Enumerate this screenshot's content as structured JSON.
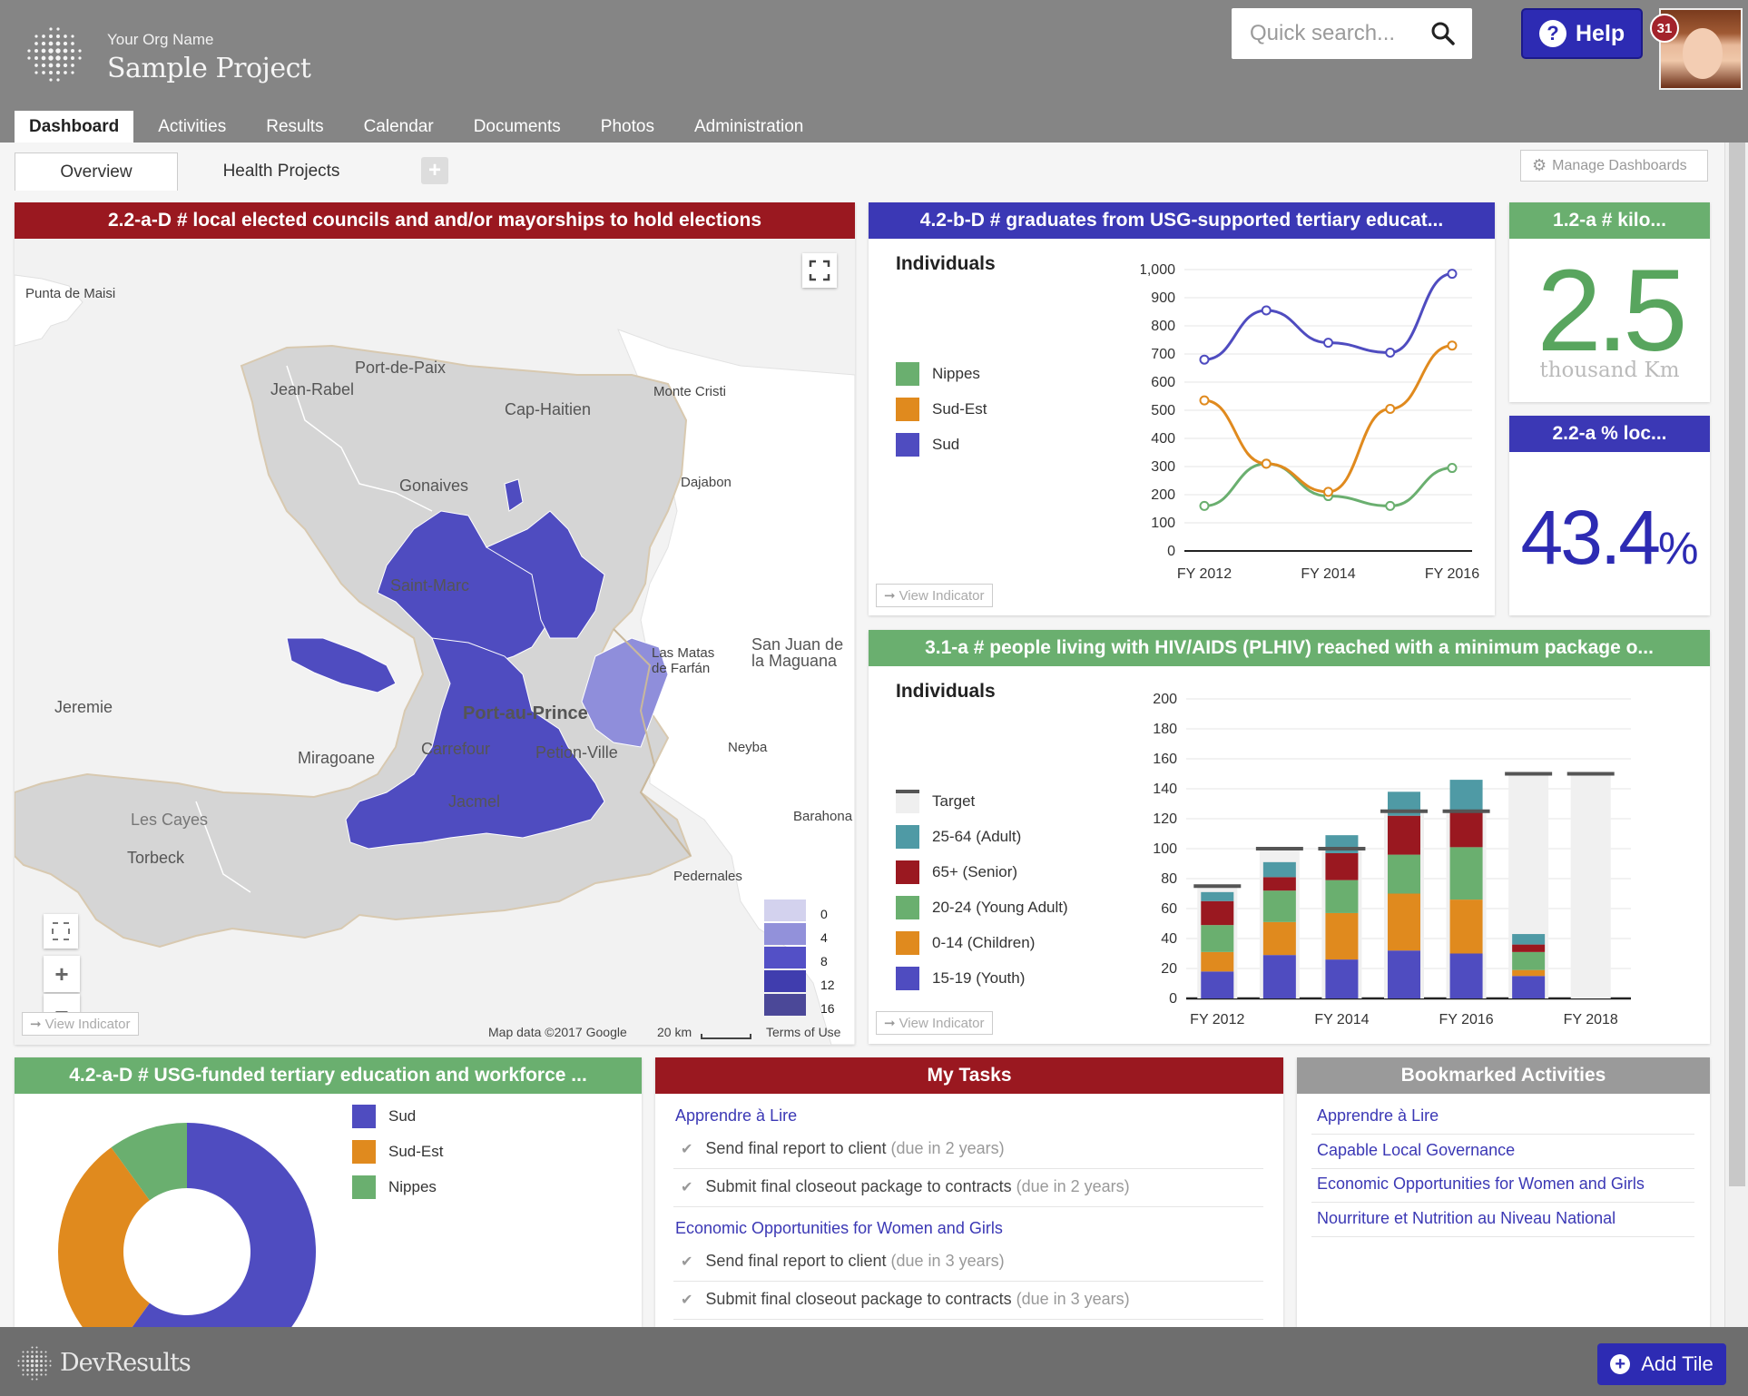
{
  "header": {
    "org_name": "Your Org Name",
    "project_name": "Sample Project",
    "search_placeholder": "Quick search...",
    "help_label": "Help",
    "notification_count": "31"
  },
  "nav": {
    "tabs": [
      "Dashboard",
      "Activities",
      "Results",
      "Calendar",
      "Documents",
      "Photos",
      "Administration"
    ],
    "active": "Dashboard"
  },
  "subtabs": {
    "items": [
      "Overview",
      "Health Projects"
    ],
    "manage_label": "Manage Dashboards"
  },
  "map_tile": {
    "title": "2.2-a-D # local elected councils and and/or mayorships to hold elections",
    "labels": {
      "punta": "Punta de Maisi",
      "portdepaix": "Port-de-Paix",
      "jeanrabel": "Jean-Rabel",
      "caphaitien": "Cap-Haitien",
      "montecristi": "Monte Cristi",
      "gonaives": "Gonaives",
      "dajabon": "Dajabon",
      "saintmarc": "Saint-Marc",
      "lasmatas": "Las Matas de Farfán",
      "sanjuan": "San Juan de la Maguana",
      "jeremie": "Jeremie",
      "portauprince": "Port-au-Prince",
      "neyba": "Neyba",
      "miragoane": "Miragoane",
      "carrefour": "Carrefour",
      "petionville": "Petion-Ville",
      "jacmel": "Jacmel",
      "lescayes": "Les Cayes",
      "barahona": "Barahona",
      "pedernales": "Pedernales",
      "torbeck": "Torbeck"
    },
    "legend": [
      "0",
      "4",
      "8",
      "12",
      "16"
    ],
    "legend_colors": [
      "#d3d2ee",
      "#9291da",
      "#5350c6",
      "#403dae",
      "#4b4898"
    ],
    "attribution": "Map data ©2017 Google",
    "scale": "20 km",
    "terms": "Terms of Use",
    "view_indicator": "View Indicator"
  },
  "graduates_tile": {
    "title": "4.2-b-D # graduates from USG-supported tertiary educat...",
    "unit": "Individuals",
    "view_indicator": "View Indicator",
    "chart_data": {
      "type": "line",
      "x": [
        "FY 2012",
        "FY 2013",
        "FY 2014",
        "FY 2015",
        "FY 2016"
      ],
      "x_tick_labels": [
        "FY 2012",
        "FY 2014",
        "FY 2016"
      ],
      "ylim": [
        0,
        1000
      ],
      "y_ticks": [
        "0",
        "100",
        "200",
        "300",
        "400",
        "500",
        "600",
        "700",
        "800",
        "900",
        "1,000"
      ],
      "legend_placement": "left",
      "series": [
        {
          "name": "Nippes",
          "color": "#6aaf6f",
          "values": [
            160,
            310,
            195,
            160,
            295
          ]
        },
        {
          "name": "Sud-Est",
          "color": "#e08a1e",
          "values": [
            535,
            310,
            210,
            505,
            730
          ]
        },
        {
          "name": "Sud",
          "color": "#4f4cc0",
          "values": [
            680,
            855,
            740,
            705,
            985
          ]
        }
      ]
    }
  },
  "km_tile": {
    "title": "1.2-a # kilo...",
    "value": "2.5",
    "unit": "thousand Km"
  },
  "pct_tile": {
    "title": "2.2-a % loc...",
    "value": "43.4",
    "unit": "%"
  },
  "hiv_tile": {
    "title": "3.1-a # people living with HIV/AIDS (PLHIV) reached with a minimum package o...",
    "unit": "Individuals",
    "view_indicator": "View Indicator",
    "chart_data": {
      "type": "bar",
      "stacked": true,
      "categories": [
        "FY 2012",
        "FY 2013",
        "FY 2014",
        "FY 2015",
        "FY 2016",
        "FY 2017",
        "FY 2018"
      ],
      "x_tick_labels": [
        "FY 2012",
        "FY 2014",
        "FY 2016",
        "FY 2018"
      ],
      "ylim": [
        0,
        200
      ],
      "y_ticks": [
        "0",
        "20",
        "40",
        "60",
        "80",
        "100",
        "120",
        "140",
        "160",
        "180",
        "200"
      ],
      "legend_placement": "left",
      "target": {
        "name": "Target",
        "values": [
          75,
          100,
          100,
          125,
          125,
          150,
          150
        ]
      },
      "series": [
        {
          "name": "15-19 (Youth)",
          "color": "#4f4cc0",
          "values": [
            18,
            29,
            26,
            32,
            30,
            15,
            0
          ]
        },
        {
          "name": "0-14 (Children)",
          "color": "#e08a1e",
          "values": [
            13,
            22,
            31,
            38,
            36,
            4,
            0
          ]
        },
        {
          "name": "20-24 (Young Adult)",
          "color": "#6aaf6f",
          "values": [
            18,
            21,
            22,
            26,
            35,
            12,
            0
          ]
        },
        {
          "name": "65+ (Senior)",
          "color": "#9a1820",
          "values": [
            16,
            9,
            18,
            26,
            23,
            5,
            0
          ]
        },
        {
          "name": "25-64 (Adult)",
          "color": "#4f9aa5",
          "values": [
            6,
            10,
            12,
            16,
            22,
            7,
            0
          ]
        }
      ],
      "legend_order": [
        "Target",
        "25-64 (Adult)",
        "65+ (Senior)",
        "20-24 (Young Adult)",
        "0-14 (Children)",
        "15-19 (Youth)"
      ]
    }
  },
  "education_tile": {
    "title": "4.2-a-D # USG-funded tertiary education and workforce ...",
    "chart_data": {
      "type": "pie",
      "donut": true,
      "legend_placement": "right",
      "slices": [
        {
          "name": "Sud",
          "color": "#4f4cc0",
          "value": 60
        },
        {
          "name": "Sud-Est",
          "color": "#e08a1e",
          "value": 30
        },
        {
          "name": "Nippes",
          "color": "#6aaf6f",
          "value": 10
        }
      ]
    }
  },
  "tasks_tile": {
    "title": "My Tasks",
    "groups": [
      {
        "activity": "Apprendre à Lire",
        "tasks": [
          {
            "text": "Send final report to client",
            "due": "(due in 2 years)"
          },
          {
            "text": "Submit final closeout package to contracts",
            "due": "(due in 2 years)"
          }
        ]
      },
      {
        "activity": "Economic Opportunities for Women and Girls",
        "tasks": [
          {
            "text": "Send final report to client",
            "due": "(due in 3 years)"
          },
          {
            "text": "Submit final closeout package to contracts",
            "due": "(due in 3 years)"
          }
        ]
      }
    ]
  },
  "bookmarks_tile": {
    "title": "Bookmarked Activities",
    "items": [
      "Apprendre à Lire",
      "Capable Local Governance",
      "Economic Opportunities for Women and Girls",
      "Nourriture et Nutrition au Niveau National"
    ]
  },
  "footer": {
    "brand": "DevResults",
    "add_tile_label": "Add Tile"
  }
}
